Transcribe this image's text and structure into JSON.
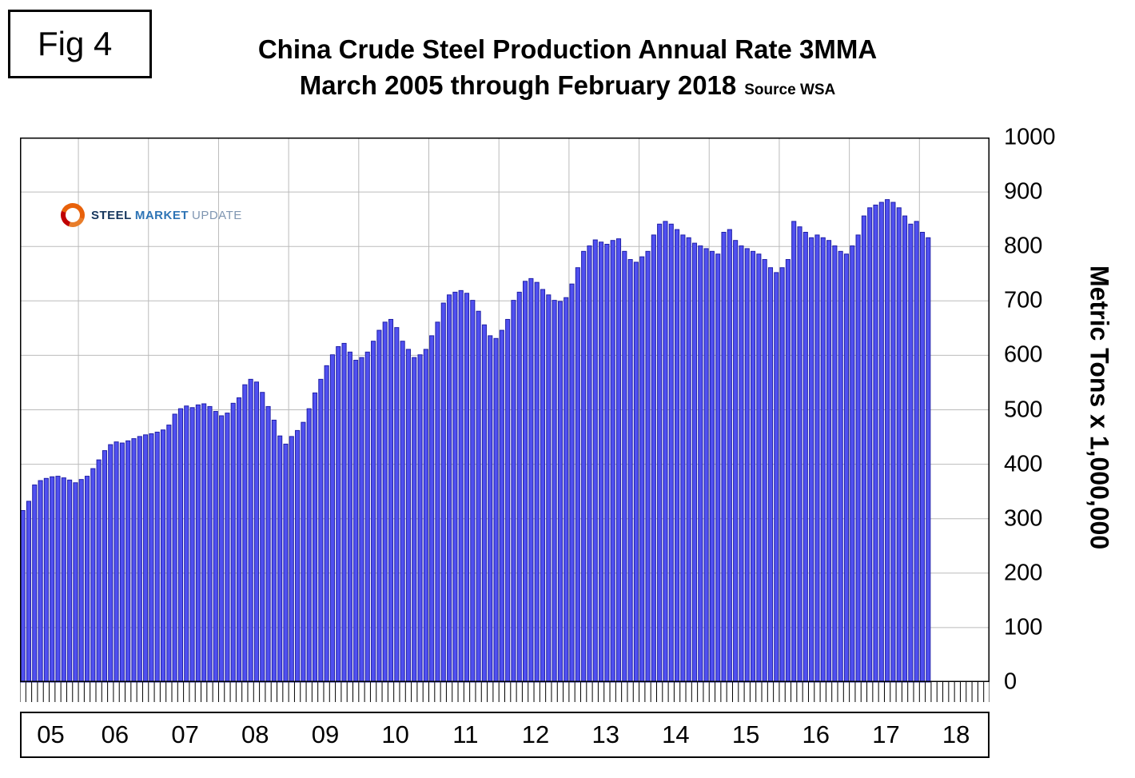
{
  "fig_label": "Fig 4",
  "title": {
    "line1": "China Crude Steel Production Annual Rate 3MMA",
    "line2": "March 2005 through February 2018",
    "source": "Source WSA"
  },
  "logo": {
    "steel": "STEEL",
    "market": "MARKET",
    "update": "UPDATE"
  },
  "y_axis": {
    "label": "Metric Tons x 1,000,000",
    "ticks": [
      "0",
      "100",
      "200",
      "300",
      "400",
      "500",
      "600",
      "700",
      "800",
      "900",
      "1000"
    ]
  },
  "x_axis": {
    "years": [
      "05",
      "06",
      "07",
      "08",
      "09",
      "10",
      "11",
      "12",
      "13",
      "14",
      "15",
      "16",
      "17",
      "18"
    ]
  },
  "chart_data": {
    "type": "bar",
    "title": "China Crude Steel Production Annual Rate 3MMA",
    "subtitle": "March 2005 through February 2018",
    "source": "Source WSA",
    "ylabel": "Metric Tons x 1,000,000",
    "ylim": [
      0,
      1000
    ],
    "frequency": "monthly",
    "x_start": "2005-03",
    "x_end": "2018-02",
    "first_year_slots": 10,
    "slots_per_full_year": 12,
    "total_slots": 166,
    "grid": true,
    "bar_fill": "#5050f0",
    "bar_stroke": "#2020a8",
    "grid_color": "#bbbbbb",
    "values": [
      315,
      332,
      362,
      370,
      374,
      377,
      378,
      375,
      371,
      366,
      372,
      378,
      392,
      408,
      425,
      436,
      441,
      439,
      443,
      447,
      451,
      454,
      456,
      459,
      463,
      472,
      492,
      502,
      507,
      504,
      509,
      511,
      506,
      497,
      489,
      494,
      512,
      522,
      546,
      556,
      551,
      532,
      506,
      481,
      452,
      437,
      451,
      462,
      477,
      502,
      531,
      556,
      581,
      601,
      616,
      622,
      606,
      591,
      596,
      606,
      626,
      646,
      661,
      666,
      651,
      626,
      611,
      596,
      601,
      611,
      636,
      661,
      696,
      711,
      716,
      719,
      714,
      701,
      681,
      656,
      636,
      631,
      646,
      666,
      701,
      716,
      736,
      741,
      734,
      721,
      711,
      701,
      699,
      706,
      731,
      761,
      791,
      801,
      812,
      808,
      804,
      811,
      814,
      791,
      776,
      771,
      781,
      791,
      821,
      841,
      846,
      841,
      831,
      821,
      816,
      806,
      801,
      796,
      791,
      786,
      826,
      831,
      811,
      801,
      796,
      791,
      786,
      776,
      761,
      752,
      761,
      776,
      846,
      836,
      826,
      816,
      821,
      816,
      811,
      801,
      791,
      786,
      801,
      821,
      856,
      871,
      876,
      881,
      886,
      881,
      871,
      856,
      841,
      846,
      826,
      816
    ]
  }
}
